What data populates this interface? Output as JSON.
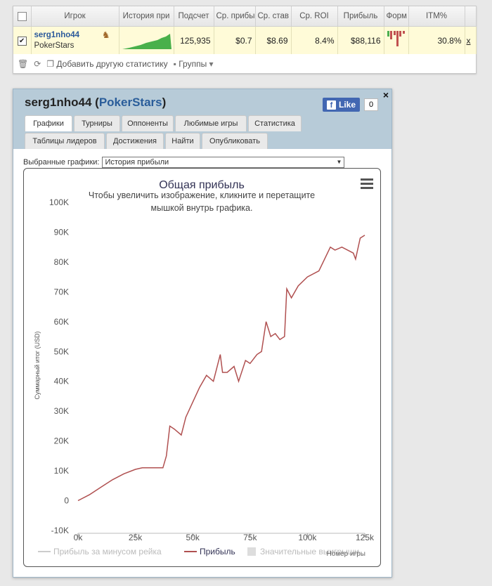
{
  "top_table": {
    "headers": [
      "Игрок",
      "История при",
      "Подсчет",
      "Ср. прибы",
      "Ср. став",
      "Ср. ROI",
      "Прибыль",
      "Форм",
      "ITM%"
    ],
    "row": {
      "player": "serg1nho44",
      "network": "PokerStars",
      "count": "125,935",
      "avg_profit": "$0.7",
      "avg_stake": "$8.69",
      "avg_roi": "8.4%",
      "profit": "$88,116",
      "itm": "30.8%",
      "extra": "x"
    },
    "toolbar": {
      "add_stat": "Добавить другую статистику",
      "groups": "Группы"
    }
  },
  "panel": {
    "player": "serg1nho44",
    "network": "PokerStars",
    "like_label": "Like",
    "like_count": "0",
    "close": "×",
    "tabs_row1": [
      "Графики",
      "Турниры",
      "Оппоненты",
      "Любимые игры",
      "Статистика"
    ],
    "tabs_row2": [
      "Таблицы лидеров",
      "Достижения",
      "Найти",
      "Опубликовать"
    ],
    "select_label": "Выбранные графики:",
    "select_value": "История прибыли"
  },
  "chart_data": {
    "type": "line",
    "title": "Общая прибыль",
    "subtitle": "Чтобы увеличить изображение, кликните и перетащите мышкой внутрь графика.",
    "ylabel": "Суммарный итог (USD)",
    "xlabel": "Номер игры",
    "ylim": [
      -10000,
      100000
    ],
    "xlim": [
      0,
      125000
    ],
    "y_ticks": [
      "-10K",
      "0",
      "10K",
      "20K",
      "30K",
      "40K",
      "50K",
      "60K",
      "70K",
      "80K",
      "90K",
      "100K"
    ],
    "x_ticks": [
      "0k",
      "25k",
      "50k",
      "75k",
      "100k",
      "125k"
    ],
    "legend": [
      "Прибыль за минусом рейка",
      "Прибыль",
      "Значительные выигрыши"
    ],
    "series": [
      {
        "name": "Прибыль",
        "color": "#b05050",
        "x": [
          0,
          5000,
          10000,
          15000,
          20000,
          25000,
          28000,
          35000,
          37000,
          38500,
          40000,
          42000,
          45000,
          47000,
          50000,
          53000,
          56000,
          59000,
          62000,
          63000,
          65000,
          68000,
          70000,
          73000,
          75000,
          78000,
          80000,
          82000,
          84000,
          86000,
          88000,
          90000,
          91000,
          93000,
          96000,
          100000,
          105000,
          110000,
          112000,
          115000,
          120000,
          121000,
          123000,
          125000
        ],
        "y": [
          0,
          2000,
          4500,
          7000,
          9000,
          10500,
          11000,
          11000,
          11000,
          15000,
          25000,
          24000,
          22000,
          28000,
          33000,
          38000,
          42000,
          40000,
          49000,
          43000,
          43000,
          45000,
          40000,
          47000,
          46000,
          49000,
          50000,
          60000,
          55000,
          56000,
          54000,
          55000,
          71000,
          68000,
          72000,
          75000,
          77000,
          85000,
          84000,
          85000,
          83000,
          81000,
          88000,
          89000
        ]
      }
    ]
  },
  "colors": {
    "accent": "#2a5d9a",
    "row_highlight": "#fffbd8",
    "header_bg": "#b7cbd8",
    "line": "#b05050"
  }
}
